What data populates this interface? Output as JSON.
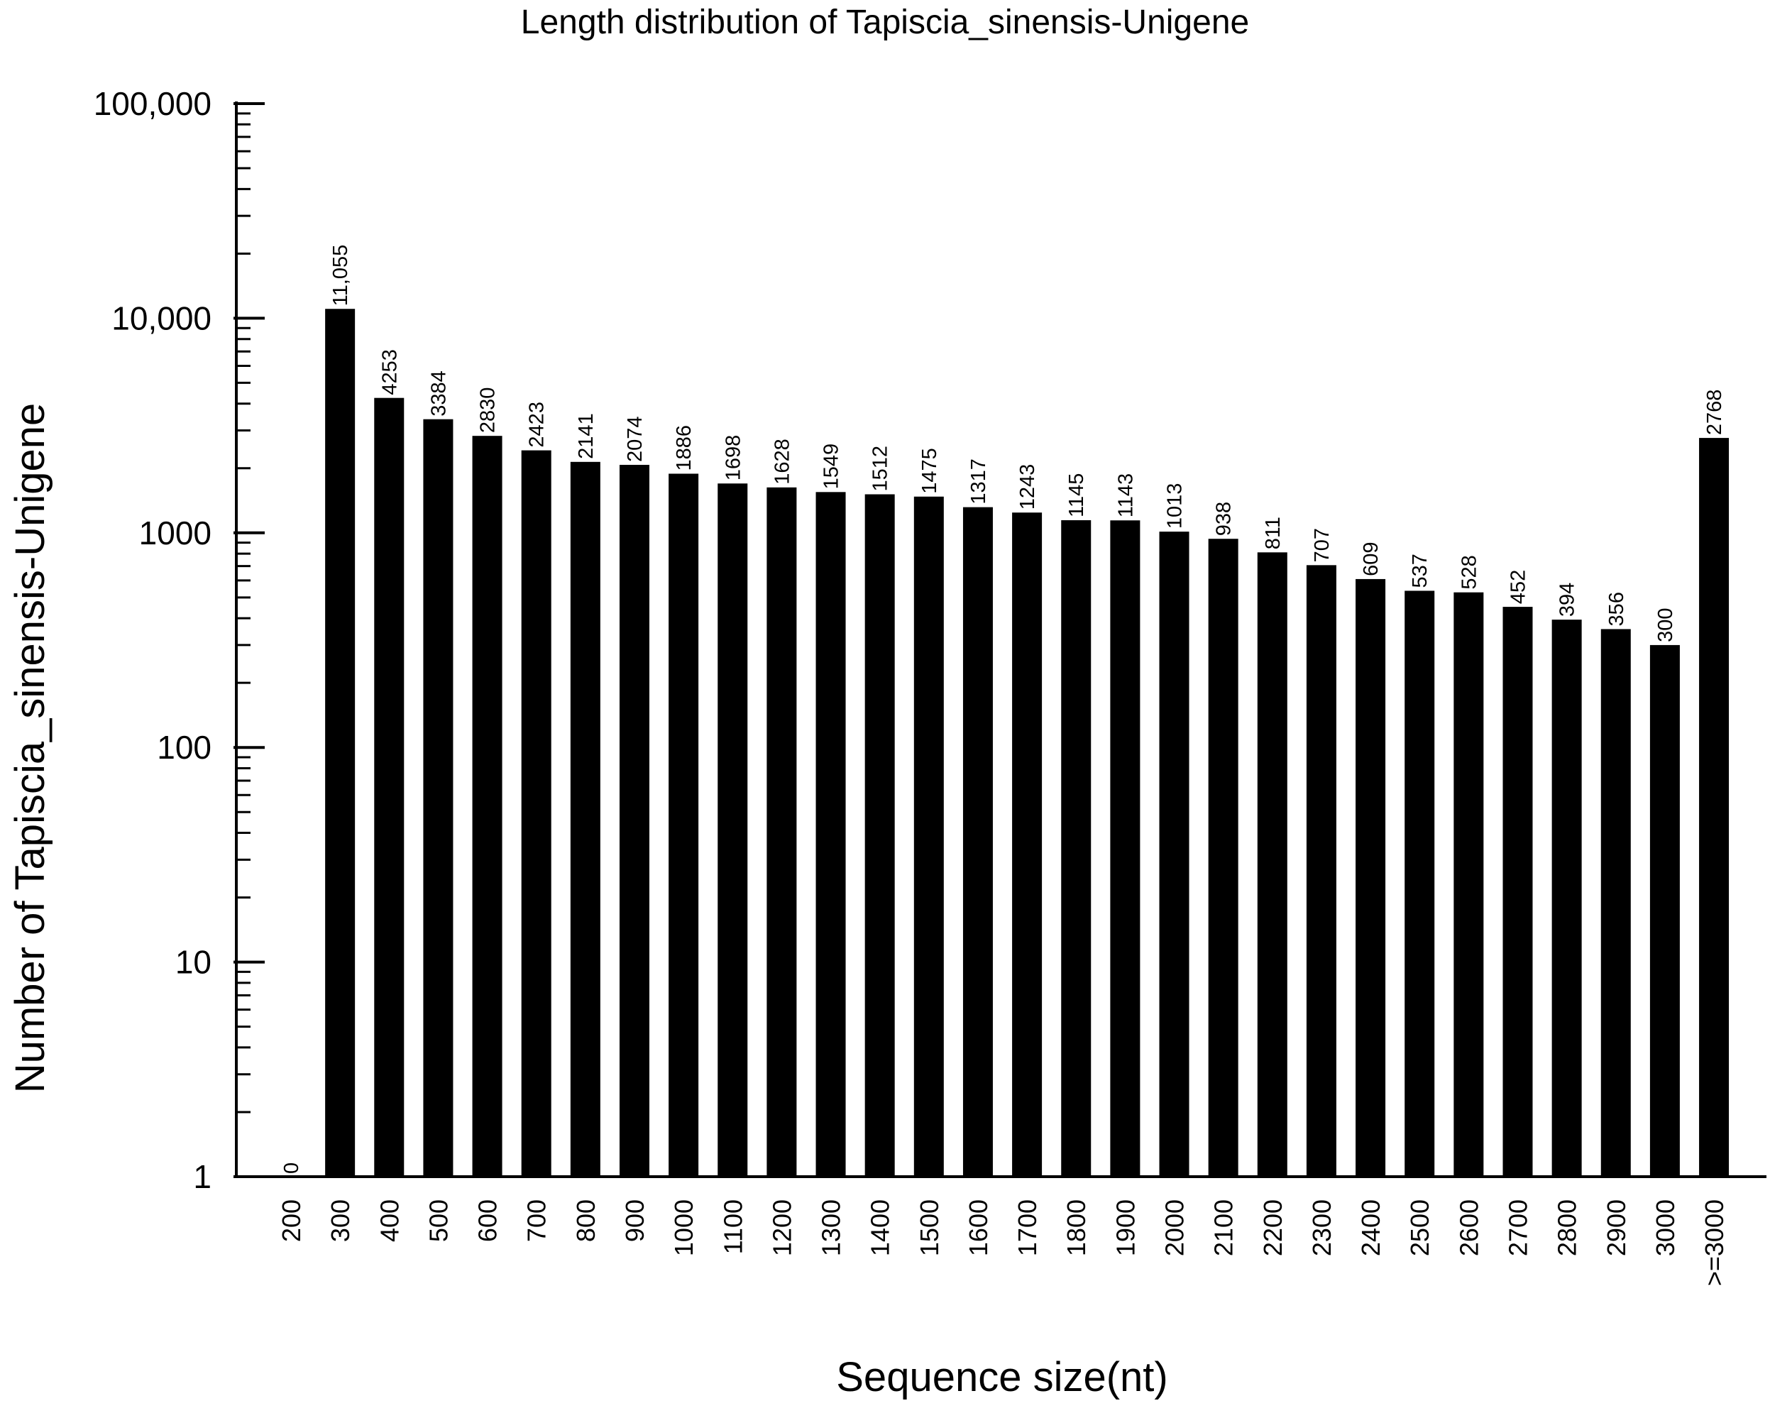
{
  "chart_data": {
    "type": "bar",
    "title": "Length distribution of Tapiscia_sinensis-Unigene",
    "xlabel": "Sequence size(nt)",
    "ylabel": "Number of Tapiscia_sinensis-Unigene",
    "yscale": "log",
    "ylim": [
      1,
      100000
    ],
    "grid": false,
    "legend": "none",
    "bar_color": "#000000",
    "yticks": [
      1,
      10,
      100,
      1000,
      10000,
      100000
    ],
    "ytick_labels": [
      "1",
      "10",
      "100",
      "1000",
      "10,000",
      "100,000"
    ],
    "categories": [
      "200",
      "300",
      "400",
      "500",
      "600",
      "700",
      "800",
      "900",
      "1000",
      "1100",
      "1200",
      "1300",
      "1400",
      "1500",
      "1600",
      "1700",
      "1800",
      "1900",
      "2000",
      "2100",
      "2200",
      "2300",
      "2400",
      "2500",
      "2600",
      "2700",
      "2800",
      "2900",
      "3000",
      ">=3000"
    ],
    "values": [
      0,
      11055,
      4253,
      3384,
      2830,
      2423,
      2141,
      2074,
      1886,
      1698,
      1628,
      1549,
      1512,
      1475,
      1317,
      1243,
      1145,
      1143,
      1013,
      938,
      811,
      707,
      609,
      537,
      528,
      452,
      394,
      356,
      300,
      2768
    ],
    "value_labels": [
      "0",
      "11,055",
      "4253",
      "3384",
      "2830",
      "2423",
      "2141",
      "2074",
      "1886",
      "1698",
      "1628",
      "1549",
      "1512",
      "1475",
      "1317",
      "1243",
      "1145",
      "1143",
      "1013",
      "938",
      "811",
      "707",
      "609",
      "537",
      "528",
      "452",
      "394",
      "356",
      "300",
      "2768"
    ]
  }
}
